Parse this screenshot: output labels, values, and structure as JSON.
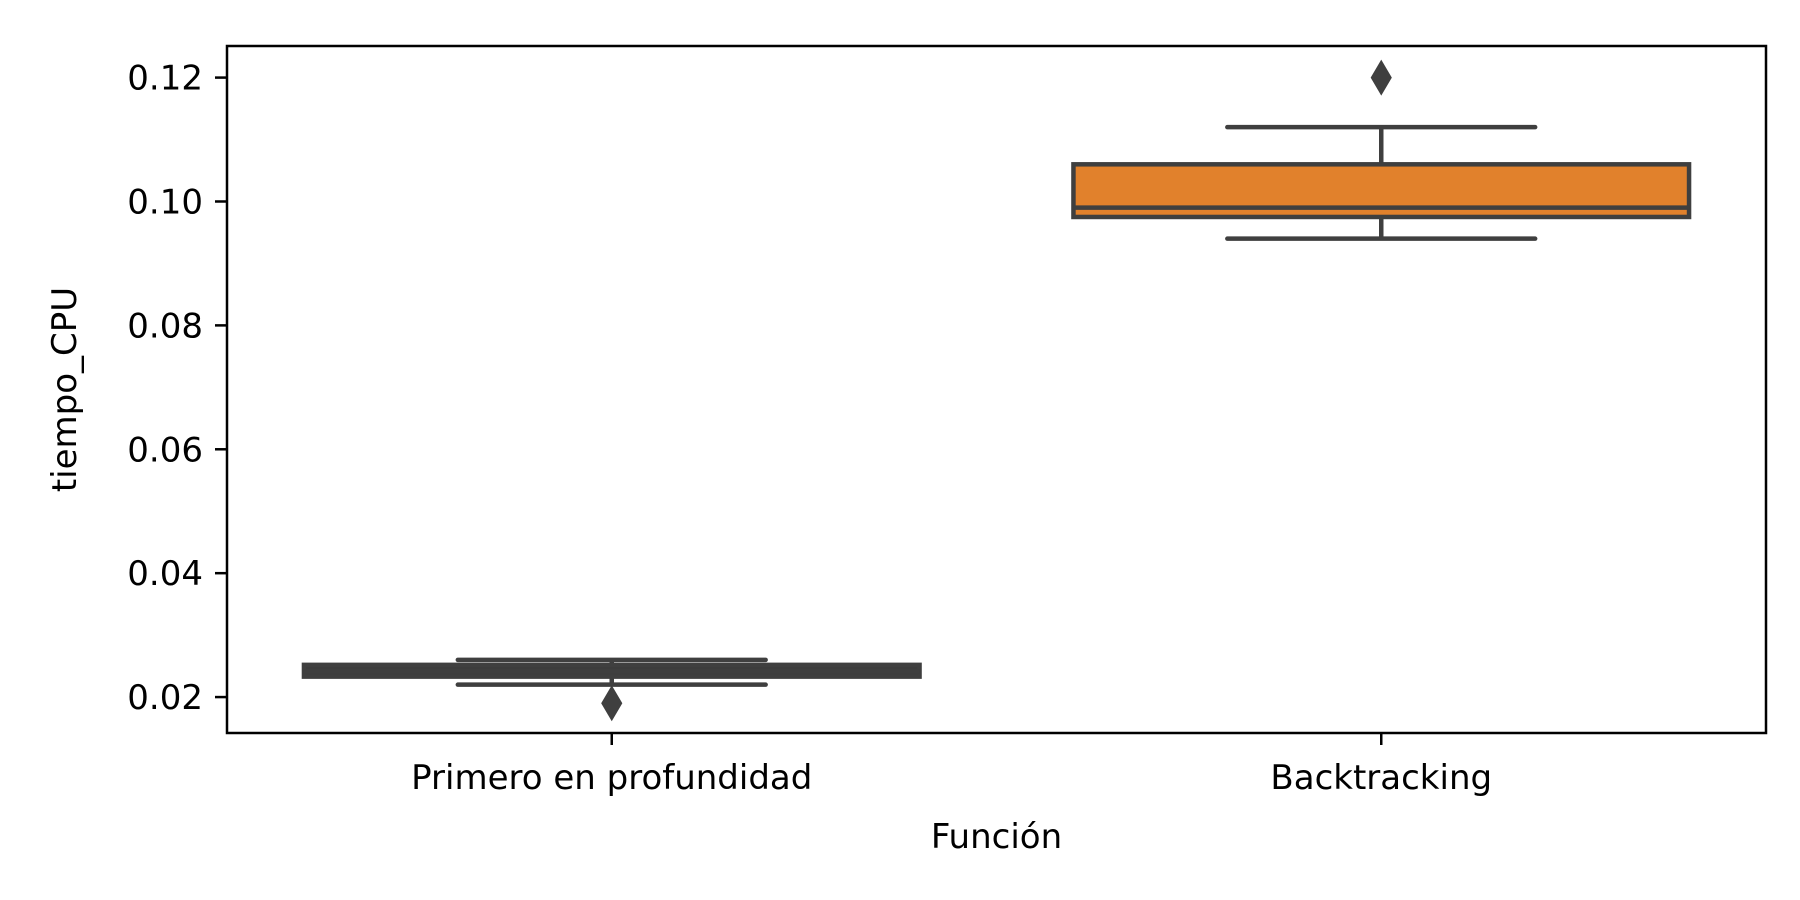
{
  "chart_data": {
    "type": "box",
    "title": "",
    "xlabel": "Función",
    "ylabel": "tiempo_CPU",
    "ylim": [
      0.0142,
      0.1251
    ],
    "yticks": [
      0.02,
      0.04,
      0.06,
      0.08,
      0.1,
      0.12
    ],
    "ytick_labels": [
      "0.02",
      "0.04",
      "0.06",
      "0.08",
      "0.10",
      "0.12"
    ],
    "grid": false,
    "legend": "none",
    "categories": [
      "Primero en profundidad",
      "Backtracking"
    ],
    "boxes": [
      {
        "category": "Primero en profundidad",
        "whisker_low": 0.022,
        "q1": 0.0233,
        "median": 0.0241,
        "q3": 0.0252,
        "whisker_high": 0.026,
        "outliers": [
          0.019
        ],
        "color": "#3c3c3c"
      },
      {
        "category": "Backtracking",
        "whisker_low": 0.094,
        "q1": 0.0975,
        "median": 0.099,
        "q3": 0.106,
        "whisker_high": 0.112,
        "outliers": [
          0.12
        ],
        "color": "#e1812c"
      }
    ],
    "line_color": "#3f3f3f"
  }
}
